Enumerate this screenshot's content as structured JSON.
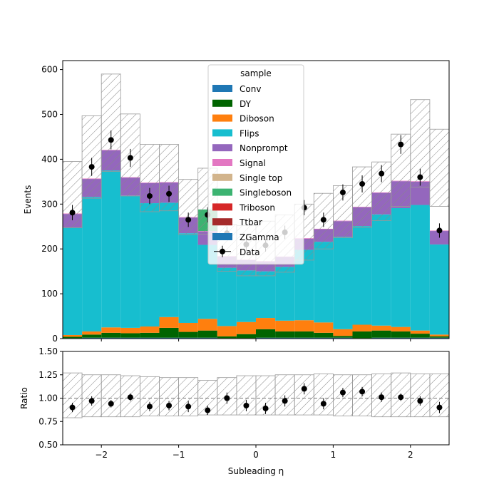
{
  "chart_data": {
    "type": "bar",
    "stacked": true,
    "x_edges": [
      -2.5,
      -2.25,
      -2.0,
      -1.75,
      -1.5,
      -1.25,
      -1.0,
      -0.75,
      -0.5,
      -0.25,
      0.0,
      0.25,
      0.5,
      0.75,
      1.0,
      1.25,
      1.5,
      1.75,
      2.0,
      2.25,
      2.5
    ],
    "xlabel": "Subleading η",
    "ylabel": "Events",
    "xlim": [
      -2.5,
      2.5
    ],
    "ylim": [
      0,
      620
    ],
    "x_ticks": [
      -2,
      -1,
      0,
      1,
      2
    ],
    "x_tick_labels": [
      "−2",
      "−1",
      "0",
      "1",
      "2"
    ],
    "y_ticks": [
      0,
      100,
      200,
      300,
      400,
      500,
      600
    ],
    "y_tick_labels": [
      "0",
      "100",
      "200",
      "300",
      "400",
      "500",
      "600"
    ],
    "legend_title": "sample",
    "legend_position": "top-center",
    "series": [
      {
        "name": "Conv",
        "color": "#1f77b4",
        "values": [
          1,
          2,
          2,
          2,
          2,
          2,
          2,
          2,
          1,
          1,
          2,
          2,
          2,
          2,
          2,
          1,
          2,
          2,
          2,
          2
        ]
      },
      {
        "name": "DY",
        "color": "#006400",
        "values": [
          3,
          7,
          11,
          10,
          11,
          22,
          13,
          16,
          4,
          9,
          19,
          14,
          14,
          11,
          4,
          15,
          16,
          14,
          9,
          3
        ]
      },
      {
        "name": "Diboson",
        "color": "#ff7f0e",
        "values": [
          4,
          7,
          12,
          12,
          14,
          24,
          20,
          26,
          23,
          27,
          25,
          24,
          25,
          23,
          15,
          15,
          11,
          10,
          7,
          4
        ]
      },
      {
        "name": "Flips",
        "color": "#17becf",
        "values": [
          240,
          300,
          350,
          295,
          275,
          255,
          200,
          165,
          130,
          115,
          104,
          120,
          157,
          180,
          206,
          220,
          248,
          265,
          280,
          201
        ]
      },
      {
        "name": "Nonprompt",
        "color": "#9467bd",
        "values": [
          30,
          40,
          45,
          40,
          45,
          45,
          35,
          30,
          25,
          23,
          22,
          22,
          25,
          28,
          35,
          42,
          48,
          60,
          52,
          30
        ]
      },
      {
        "name": "Signal",
        "color": "#e377c2",
        "values": [
          1,
          1,
          1,
          1,
          1,
          1,
          1,
          1,
          1,
          1,
          1,
          1,
          1,
          1,
          1,
          1,
          1,
          1,
          1,
          1
        ]
      },
      {
        "name": "Single top",
        "color": "#d2b48c",
        "values": [
          0,
          0,
          0,
          0,
          0,
          0,
          0,
          0,
          0,
          0,
          0,
          0,
          0,
          0,
          0,
          0,
          0,
          0,
          0,
          0
        ]
      },
      {
        "name": "Singleboson",
        "color": "#3cb371",
        "values": [
          0,
          0,
          0,
          0,
          0,
          0,
          0,
          48,
          0,
          0,
          0,
          0,
          0,
          0,
          0,
          0,
          0,
          0,
          0,
          0
        ]
      },
      {
        "name": "Triboson",
        "color": "#d62728",
        "values": [
          0,
          0,
          0,
          0,
          0,
          0,
          0,
          0,
          0,
          0,
          0,
          0,
          0,
          0,
          0,
          0,
          0,
          0,
          0,
          0
        ]
      },
      {
        "name": "Ttbar",
        "color": "#a52a2a",
        "values": [
          0,
          0,
          0,
          0,
          0,
          0,
          0,
          0,
          0,
          0,
          0,
          0,
          0,
          0,
          0,
          0,
          0,
          0,
          0,
          0
        ]
      },
      {
        "name": "ZGamma",
        "color": "#1f77b4",
        "values": [
          0,
          0,
          0,
          0,
          0,
          0,
          0,
          0,
          0,
          0,
          0,
          0,
          0,
          0,
          0,
          0,
          0,
          0,
          0,
          0
        ]
      }
    ],
    "band_low": [
      247,
      313,
      373,
      318,
      283,
      285,
      232,
      233,
      150,
      140,
      140,
      148,
      175,
      200,
      225,
      248,
      263,
      295,
      338,
      295,
      210
    ],
    "band_high": [
      395,
      497,
      590,
      501,
      433,
      433,
      355,
      380,
      255,
      252,
      262,
      276,
      300,
      324,
      341,
      383,
      394,
      456,
      533,
      467,
      337
    ],
    "data": {
      "name": "Data",
      "x": [
        -2.375,
        -2.125,
        -1.875,
        -1.625,
        -1.375,
        -1.125,
        -0.875,
        -0.625,
        -0.375,
        -0.125,
        0.125,
        0.375,
        0.625,
        0.875,
        1.125,
        1.375,
        1.625,
        1.875,
        2.125,
        2.375
      ],
      "y": [
        281,
        383,
        443,
        403,
        318,
        323,
        265,
        276,
        235,
        210,
        208,
        237,
        292,
        265,
        326,
        345,
        368,
        433,
        360,
        241
      ],
      "err": [
        17,
        20,
        21,
        20,
        18,
        18,
        16,
        17,
        15,
        14,
        14,
        15,
        17,
        16,
        18,
        19,
        19,
        21,
        19,
        16
      ]
    },
    "ratio": {
      "ylabel": "Ratio",
      "ylim": [
        0.5,
        1.5
      ],
      "y_ticks": [
        0.5,
        0.75,
        1.0,
        1.25,
        1.5
      ],
      "y_tick_labels": [
        "0.50",
        "0.75",
        "1.00",
        "1.25",
        "1.50"
      ],
      "values": [
        0.9,
        0.97,
        0.94,
        1.01,
        0.91,
        0.92,
        0.91,
        0.87,
        1.0,
        0.92,
        0.89,
        0.97,
        1.1,
        0.94,
        1.06,
        1.07,
        1.01,
        1.01,
        0.97,
        0.9
      ],
      "err": [
        0.05,
        0.05,
        0.04,
        0.04,
        0.05,
        0.05,
        0.06,
        0.05,
        0.06,
        0.06,
        0.06,
        0.06,
        0.06,
        0.06,
        0.05,
        0.05,
        0.05,
        0.04,
        0.05,
        0.06
      ],
      "band_low": [
        0.79,
        0.8,
        0.8,
        0.8,
        0.81,
        0.81,
        0.81,
        0.82,
        0.82,
        0.82,
        0.82,
        0.82,
        0.82,
        0.82,
        0.81,
        0.81,
        0.8,
        0.8,
        0.8,
        0.8
      ],
      "band_high": [
        1.27,
        1.25,
        1.25,
        1.24,
        1.23,
        1.22,
        1.22,
        1.19,
        1.22,
        1.24,
        1.24,
        1.25,
        1.25,
        1.26,
        1.25,
        1.25,
        1.26,
        1.27,
        1.26,
        1.26
      ]
    }
  }
}
